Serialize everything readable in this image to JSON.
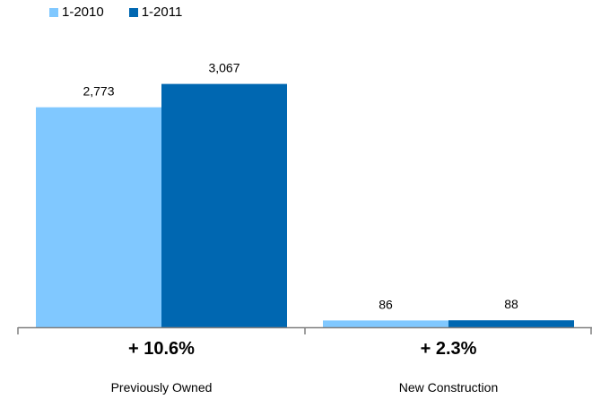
{
  "chart_data": {
    "type": "bar",
    "categories": [
      "Previously Owned",
      "New Construction"
    ],
    "series": [
      {
        "name": "1-2010",
        "values": [
          2773,
          86
        ],
        "labels": [
          "2,773",
          "86"
        ],
        "color": "#80c8ff"
      },
      {
        "name": "1-2011",
        "values": [
          3067,
          88
        ],
        "labels": [
          "3,067",
          "88"
        ],
        "color": "#0067b1"
      }
    ],
    "changes": [
      "+ 10.6%",
      "+ 2.3%"
    ],
    "legend_position": "top-left",
    "grid": false,
    "ylim": [
      0,
      3300
    ]
  }
}
